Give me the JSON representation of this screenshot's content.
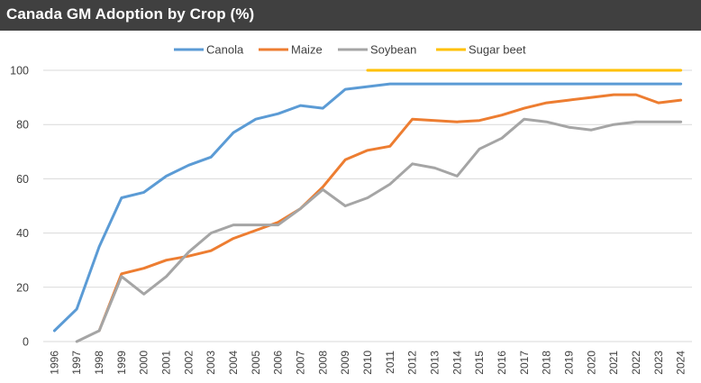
{
  "chart_data": {
    "type": "line",
    "title": "Canada GM Adoption by Crop (%)",
    "xlabel": "",
    "ylabel": "",
    "ylim": [
      0,
      100
    ],
    "yticks": [
      0,
      20,
      40,
      60,
      80,
      100
    ],
    "grid": true,
    "legend": "top",
    "x": [
      1996,
      1997,
      1998,
      1999,
      2000,
      2001,
      2002,
      2003,
      2004,
      2005,
      2006,
      2007,
      2008,
      2009,
      2010,
      2011,
      2012,
      2013,
      2014,
      2015,
      2016,
      2017,
      2018,
      2019,
      2020,
      2021,
      2022,
      2023,
      2024
    ],
    "series": [
      {
        "name": "Canola",
        "color": "#5b9bd5",
        "values": [
          4,
          12,
          35,
          53,
          55,
          61,
          65,
          68,
          77,
          82,
          84,
          87,
          86,
          93,
          94,
          95,
          95,
          95,
          95,
          95,
          95,
          95,
          95,
          95,
          95,
          95,
          95,
          95,
          95
        ]
      },
      {
        "name": "Maize",
        "color": "#ed7d31",
        "values": [
          null,
          null,
          4,
          25,
          27,
          30,
          31.5,
          33.5,
          38,
          41,
          44,
          49,
          57,
          67,
          70.5,
          72,
          82,
          81.5,
          81,
          81.5,
          83.5,
          86,
          88,
          89,
          90,
          91,
          91,
          88,
          89
        ]
      },
      {
        "name": "Soybean",
        "color": "#a5a5a5",
        "values": [
          null,
          0,
          4,
          24,
          17.5,
          24,
          33,
          40,
          43,
          43,
          43,
          49,
          56,
          50,
          53,
          58,
          65.5,
          64,
          61,
          71,
          75,
          82,
          81,
          79,
          78,
          80,
          81,
          81,
          81
        ]
      },
      {
        "name": "Sugar beet",
        "color": "#ffc000",
        "values": [
          null,
          null,
          null,
          null,
          null,
          null,
          null,
          null,
          null,
          null,
          null,
          null,
          null,
          null,
          100,
          100,
          100,
          100,
          100,
          100,
          100,
          100,
          100,
          100,
          100,
          100,
          100,
          100,
          100
        ]
      }
    ]
  },
  "colors": {
    "title_bar": "#404040",
    "title_text": "#ffffff",
    "gridline": "#d9d9d9",
    "axis_text": "#404040"
  }
}
